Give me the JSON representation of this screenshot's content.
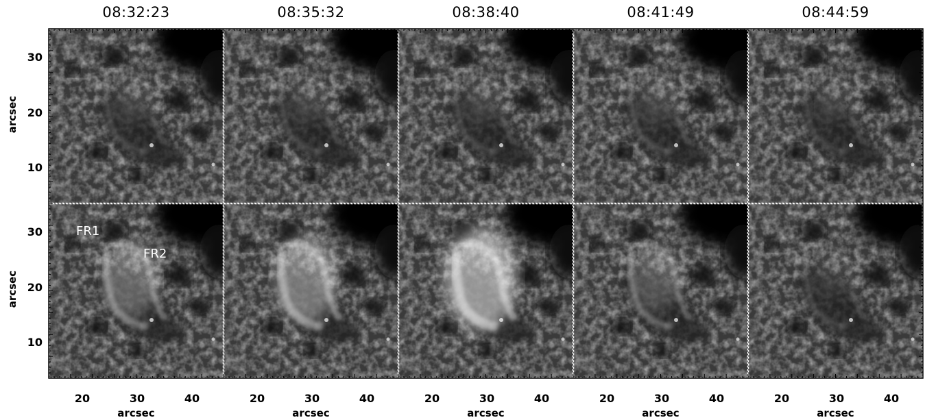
{
  "figure": {
    "column_titles": [
      "08:32:23",
      "08:35:32",
      "08:38:40",
      "08:41:49",
      "08:44:59"
    ],
    "y_axis_label": "arcsec",
    "x_axis_label": "arcsec",
    "y_tick_labels": [
      "30",
      "20",
      "10"
    ],
    "x_tick_labels": [
      "20",
      "30",
      "40"
    ],
    "annotations": {
      "fr1": "FR1",
      "fr2": "FR2"
    },
    "grid": {
      "rows": 2,
      "cols": 5
    },
    "bottom_brightness": [
      1.0,
      1.15,
      1.35,
      0.85,
      0.55
    ],
    "top_brightness": [
      0.55,
      0.55,
      0.55,
      0.6,
      0.5
    ]
  }
}
